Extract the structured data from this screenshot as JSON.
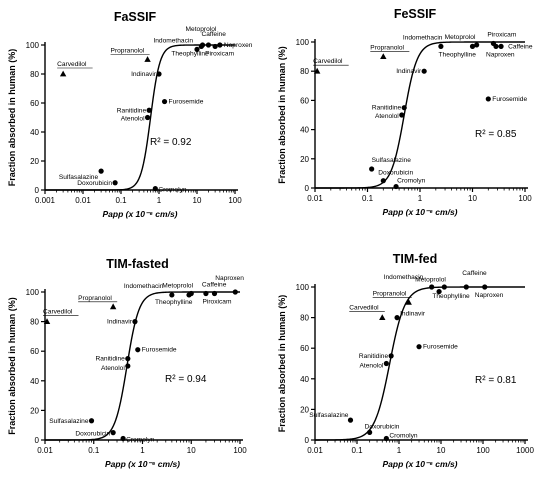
{
  "chart_data": [
    {
      "type": "scatter",
      "title": "FaSSIF",
      "ylabel": "Fraction absorbed in human (%)",
      "xlabel": "Papp (x 10⁻⁶ cm/s)",
      "x_scale": "log",
      "xlim": [
        0.001,
        100
      ],
      "ylim": [
        0,
        100
      ],
      "xticks": [
        "0.001",
        "0.01",
        "0.1",
        "1",
        "10",
        "100"
      ],
      "yticks": [
        "0",
        "20",
        "40",
        "60",
        "80",
        "100"
      ],
      "annotation": "R² = 0.92",
      "curve": {
        "x50": 0.6,
        "slope": 3.5
      },
      "points": [
        {
          "name": "Carvedilol",
          "x": 0.003,
          "y": 80,
          "marker": "triangle"
        },
        {
          "name": "Propranolol",
          "x": 0.5,
          "y": 90,
          "marker": "triangle"
        },
        {
          "name": "Indinavir",
          "x": 1.0,
          "y": 80,
          "marker": "circle"
        },
        {
          "name": "Ranitidine",
          "x": 0.55,
          "y": 55,
          "marker": "circle"
        },
        {
          "name": "Atenolol",
          "x": 0.5,
          "y": 50,
          "marker": "circle"
        },
        {
          "name": "Furosemide",
          "x": 1.4,
          "y": 61,
          "marker": "circle"
        },
        {
          "name": "Sulfasalazine",
          "x": 0.03,
          "y": 13,
          "marker": "circle"
        },
        {
          "name": "Doxorubicin",
          "x": 0.07,
          "y": 5,
          "marker": "circle"
        },
        {
          "name": "Cromolyn",
          "x": 0.8,
          "y": 1,
          "marker": "circle"
        },
        {
          "name": "Metoprolol",
          "x": 14,
          "y": 100,
          "marker": "circle"
        },
        {
          "name": "Indomethacin",
          "x": 10,
          "y": 97,
          "marker": "circle"
        },
        {
          "name": "Caffeine",
          "x": 20,
          "y": 100,
          "marker": "circle"
        },
        {
          "name": "Naproxen",
          "x": 40,
          "y": 100,
          "marker": "circle"
        },
        {
          "name": "Theophylline",
          "x": 13,
          "y": 99,
          "marker": "circle"
        },
        {
          "name": "Piroxicam",
          "x": 30,
          "y": 99,
          "marker": "circle"
        }
      ]
    },
    {
      "type": "scatter",
      "title": "FeSSIF",
      "ylabel": "Fraction absorbed in human (%)",
      "xlabel": "Papp (x 10⁻⁶ cm/s)",
      "x_scale": "log",
      "xlim": [
        0.01,
        100
      ],
      "ylim": [
        0,
        100
      ],
      "xticks": [
        "0.01",
        "0.1",
        "1",
        "10",
        "100"
      ],
      "yticks": [
        "0",
        "20",
        "40",
        "60",
        "80",
        "100"
      ],
      "annotation": "R² = 0.85",
      "curve": {
        "x50": 0.5,
        "slope": 3.5
      },
      "points": [
        {
          "name": "Carvedilol",
          "x": 0.011,
          "y": 80,
          "marker": "triangle"
        },
        {
          "name": "Propranolol",
          "x": 0.2,
          "y": 90,
          "marker": "triangle"
        },
        {
          "name": "Indinavir",
          "x": 1.2,
          "y": 80,
          "marker": "circle"
        },
        {
          "name": "Ranitidine",
          "x": 0.5,
          "y": 55,
          "marker": "circle"
        },
        {
          "name": "Atenolol",
          "x": 0.45,
          "y": 50,
          "marker": "circle"
        },
        {
          "name": "Furosemide",
          "x": 20,
          "y": 61,
          "marker": "circle"
        },
        {
          "name": "Sulfasalazine",
          "x": 0.12,
          "y": 13,
          "marker": "circle"
        },
        {
          "name": "Doxorubicin",
          "x": 0.2,
          "y": 5,
          "marker": "circle"
        },
        {
          "name": "Cromolyn",
          "x": 0.35,
          "y": 1,
          "marker": "circle"
        },
        {
          "name": "Indomethacin",
          "x": 2.5,
          "y": 97,
          "marker": "circle"
        },
        {
          "name": "Metoprolol",
          "x": 12,
          "y": 98,
          "marker": "circle"
        },
        {
          "name": "Piroxicam",
          "x": 25,
          "y": 99,
          "marker": "circle"
        },
        {
          "name": "Caffeine",
          "x": 35,
          "y": 97,
          "marker": "circle"
        },
        {
          "name": "Theophylline",
          "x": 10,
          "y": 97,
          "marker": "circle"
        },
        {
          "name": "Naproxen",
          "x": 28,
          "y": 97,
          "marker": "circle"
        }
      ]
    },
    {
      "type": "scatter",
      "title": "TIM-fasted",
      "ylabel": "Fraction absorbed in human (%)",
      "xlabel": "Papp (x 10⁻⁶ cm/s)",
      "x_scale": "log",
      "xlim": [
        0.01,
        100
      ],
      "ylim": [
        0,
        100
      ],
      "xticks": [
        "0.01",
        "0.1",
        "1",
        "10",
        "100"
      ],
      "yticks": [
        "0",
        "20",
        "40",
        "60",
        "80",
        "100"
      ],
      "annotation": "R² = 0.94",
      "curve": {
        "x50": 0.48,
        "slope": 3.5
      },
      "points": [
        {
          "name": "Carvedilol",
          "x": 0.011,
          "y": 80,
          "marker": "triangle"
        },
        {
          "name": "Propranolol",
          "x": 0.25,
          "y": 90,
          "marker": "triangle"
        },
        {
          "name": "Indinavir",
          "x": 0.7,
          "y": 80,
          "marker": "circle"
        },
        {
          "name": "Ranitidine",
          "x": 0.5,
          "y": 55,
          "marker": "circle"
        },
        {
          "name": "Atenolol",
          "x": 0.5,
          "y": 50,
          "marker": "circle"
        },
        {
          "name": "Furosemide",
          "x": 0.8,
          "y": 61,
          "marker": "circle"
        },
        {
          "name": "Sulfasalazine",
          "x": 0.09,
          "y": 13,
          "marker": "circle"
        },
        {
          "name": "Doxorubicin",
          "x": 0.25,
          "y": 5,
          "marker": "circle"
        },
        {
          "name": "Cromolyn",
          "x": 0.4,
          "y": 1,
          "marker": "circle"
        },
        {
          "name": "Indomethacin",
          "x": 4,
          "y": 98,
          "marker": "circle"
        },
        {
          "name": "Metoprolol",
          "x": 10,
          "y": 99,
          "marker": "circle"
        },
        {
          "name": "Caffeine",
          "x": 20,
          "y": 99,
          "marker": "circle"
        },
        {
          "name": "Naproxen",
          "x": 80,
          "y": 100,
          "marker": "circle"
        },
        {
          "name": "Theophylline",
          "x": 9,
          "y": 98,
          "marker": "circle"
        },
        {
          "name": "Piroxicam",
          "x": 30,
          "y": 99,
          "marker": "circle"
        }
      ]
    },
    {
      "type": "scatter",
      "title": "TIM-fed",
      "ylabel": "Fraction absorbed in human (%)",
      "xlabel": "Papp (x 10⁻⁶ cm/s)",
      "x_scale": "log",
      "xlim": [
        0.01,
        1000
      ],
      "ylim": [
        0,
        100
      ],
      "xticks": [
        "0.01",
        "0.1",
        "1",
        "10",
        "100",
        "1000"
      ],
      "yticks": [
        "0",
        "20",
        "40",
        "60",
        "80",
        "100"
      ],
      "annotation": "R² = 0.81",
      "curve": {
        "x50": 0.6,
        "slope": 2.4
      },
      "points": [
        {
          "name": "Carvedilol",
          "x": 0.4,
          "y": 80,
          "marker": "triangle"
        },
        {
          "name": "Propranolol",
          "x": 1.7,
          "y": 90,
          "marker": "triangle"
        },
        {
          "name": "Indinavir",
          "x": 0.9,
          "y": 80,
          "marker": "circle"
        },
        {
          "name": "Ranitidine",
          "x": 0.65,
          "y": 55,
          "marker": "circle"
        },
        {
          "name": "Atenolol",
          "x": 0.5,
          "y": 50,
          "marker": "circle"
        },
        {
          "name": "Furosemide",
          "x": 3,
          "y": 61,
          "marker": "circle"
        },
        {
          "name": "Sulfasalazine",
          "x": 0.07,
          "y": 13,
          "marker": "circle"
        },
        {
          "name": "Doxorubicin",
          "x": 0.2,
          "y": 5,
          "marker": "circle"
        },
        {
          "name": "Cromolyn",
          "x": 0.5,
          "y": 1,
          "marker": "circle"
        },
        {
          "name": "Indomethacin",
          "x": 6,
          "y": 100,
          "marker": "circle"
        },
        {
          "name": "Metoprolol",
          "x": 9,
          "y": 97,
          "marker": "circle"
        },
        {
          "name": "Caffeine",
          "x": 40,
          "y": 100,
          "marker": "circle"
        },
        {
          "name": "Theophylline",
          "x": 12,
          "y": 100,
          "marker": "circle"
        },
        {
          "name": "Naproxen",
          "x": 110,
          "y": 100,
          "marker": "circle"
        }
      ]
    }
  ]
}
